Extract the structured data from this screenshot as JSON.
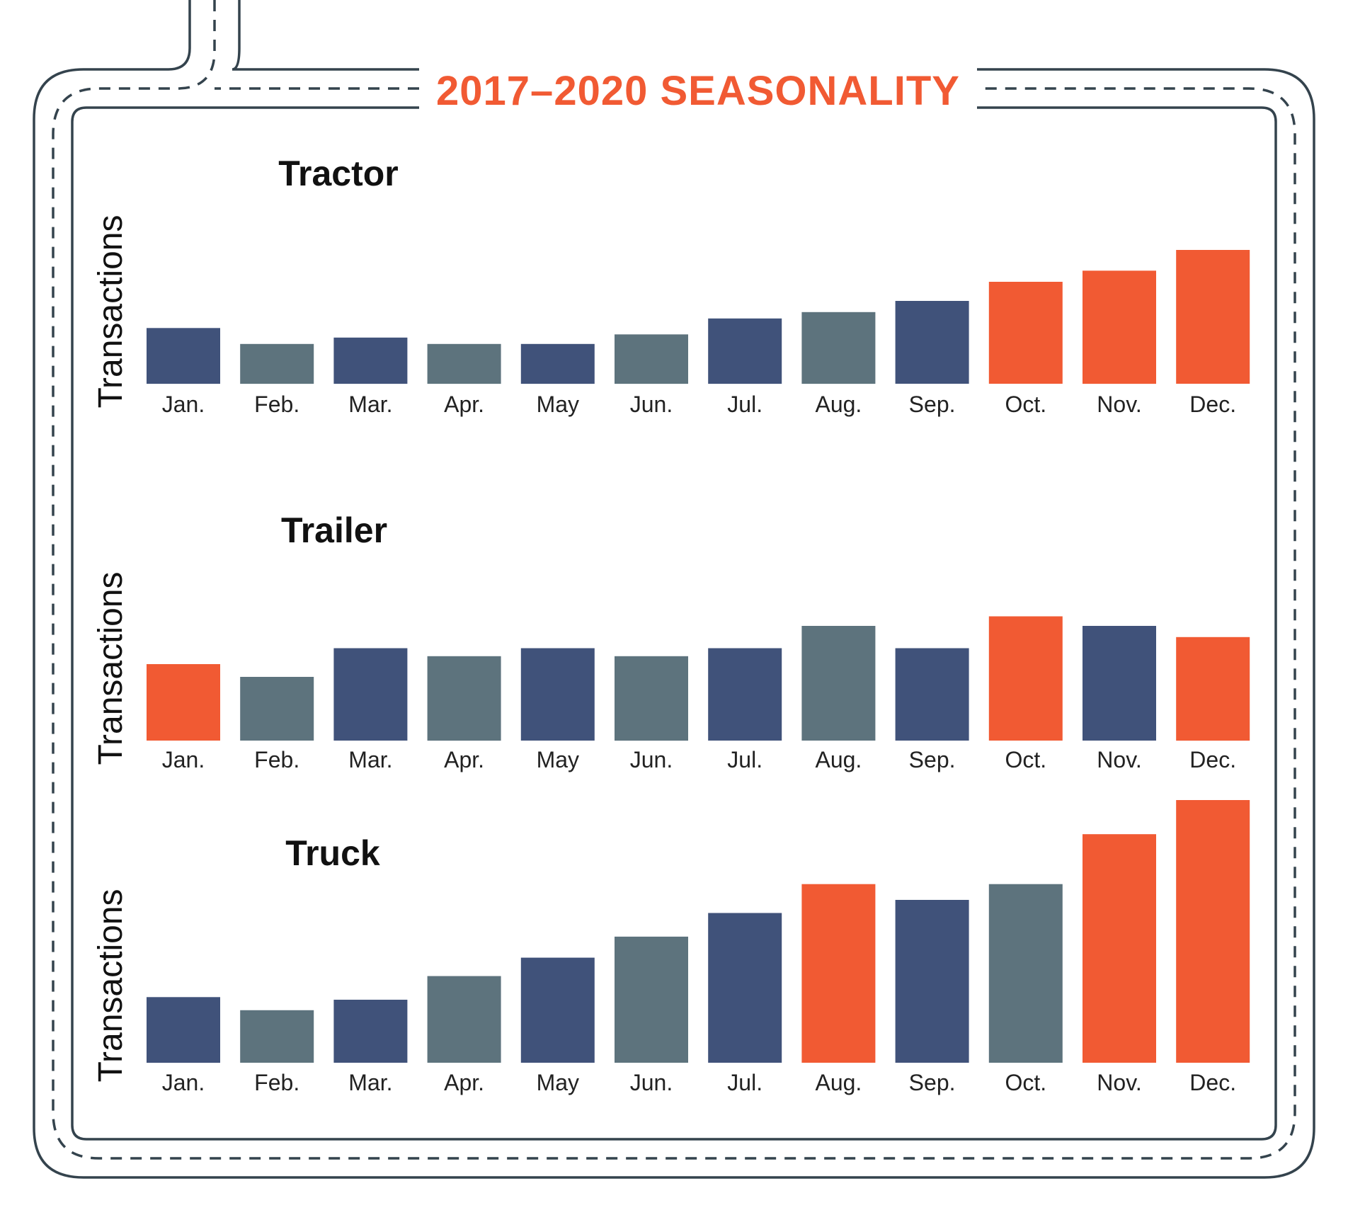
{
  "title": "2017–2020 SEASONALITY",
  "colors": {
    "navy": "#40527a",
    "slate": "#5d737d",
    "orange": "#f15a33",
    "frame": "#34434d",
    "title": "#f15a33"
  },
  "chart_data": [
    {
      "type": "bar",
      "title": "Tractor",
      "ylabel": "Transactions",
      "xlabel": "",
      "grid": false,
      "ylim": [
        0,
        100
      ],
      "categories": [
        "Jan.",
        "Feb.",
        "Mar.",
        "Apr.",
        "May",
        "Jun.",
        "Jul.",
        "Aug.",
        "Sep.",
        "Oct.",
        "Nov.",
        "Dec."
      ],
      "values": [
        35,
        25,
        29,
        25,
        25,
        31,
        41,
        45,
        52,
        64,
        71,
        84
      ],
      "bar_colors": [
        "navy",
        "slate",
        "navy",
        "slate",
        "navy",
        "slate",
        "navy",
        "slate",
        "navy",
        "orange",
        "orange",
        "orange"
      ]
    },
    {
      "type": "bar",
      "title": "Trailer",
      "ylabel": "Transactions",
      "xlabel": "",
      "grid": false,
      "ylim": [
        0,
        100
      ],
      "categories": [
        "Jan.",
        "Feb.",
        "Mar.",
        "Apr.",
        "May",
        "Jun.",
        "Jul.",
        "Aug.",
        "Sep.",
        "Oct.",
        "Nov.",
        "Dec."
      ],
      "values": [
        48,
        40,
        58,
        53,
        58,
        53,
        58,
        72,
        58,
        78,
        72,
        65
      ],
      "bar_colors": [
        "orange",
        "slate",
        "navy",
        "slate",
        "navy",
        "slate",
        "navy",
        "slate",
        "navy",
        "orange",
        "navy",
        "orange"
      ]
    },
    {
      "type": "bar",
      "title": "Truck",
      "ylabel": "Transactions",
      "xlabel": "",
      "grid": false,
      "ylim": [
        0,
        100
      ],
      "categories": [
        "Jan.",
        "Feb.",
        "Mar.",
        "Apr.",
        "May",
        "Jun.",
        "Jul.",
        "Aug.",
        "Sep.",
        "Oct.",
        "Nov.",
        "Dec."
      ],
      "values": [
        25,
        20,
        24,
        33,
        40,
        48,
        57,
        68,
        62,
        68,
        87,
        100
      ],
      "bar_colors": [
        "navy",
        "slate",
        "navy",
        "slate",
        "navy",
        "slate",
        "navy",
        "orange",
        "navy",
        "slate",
        "orange",
        "orange"
      ]
    }
  ]
}
